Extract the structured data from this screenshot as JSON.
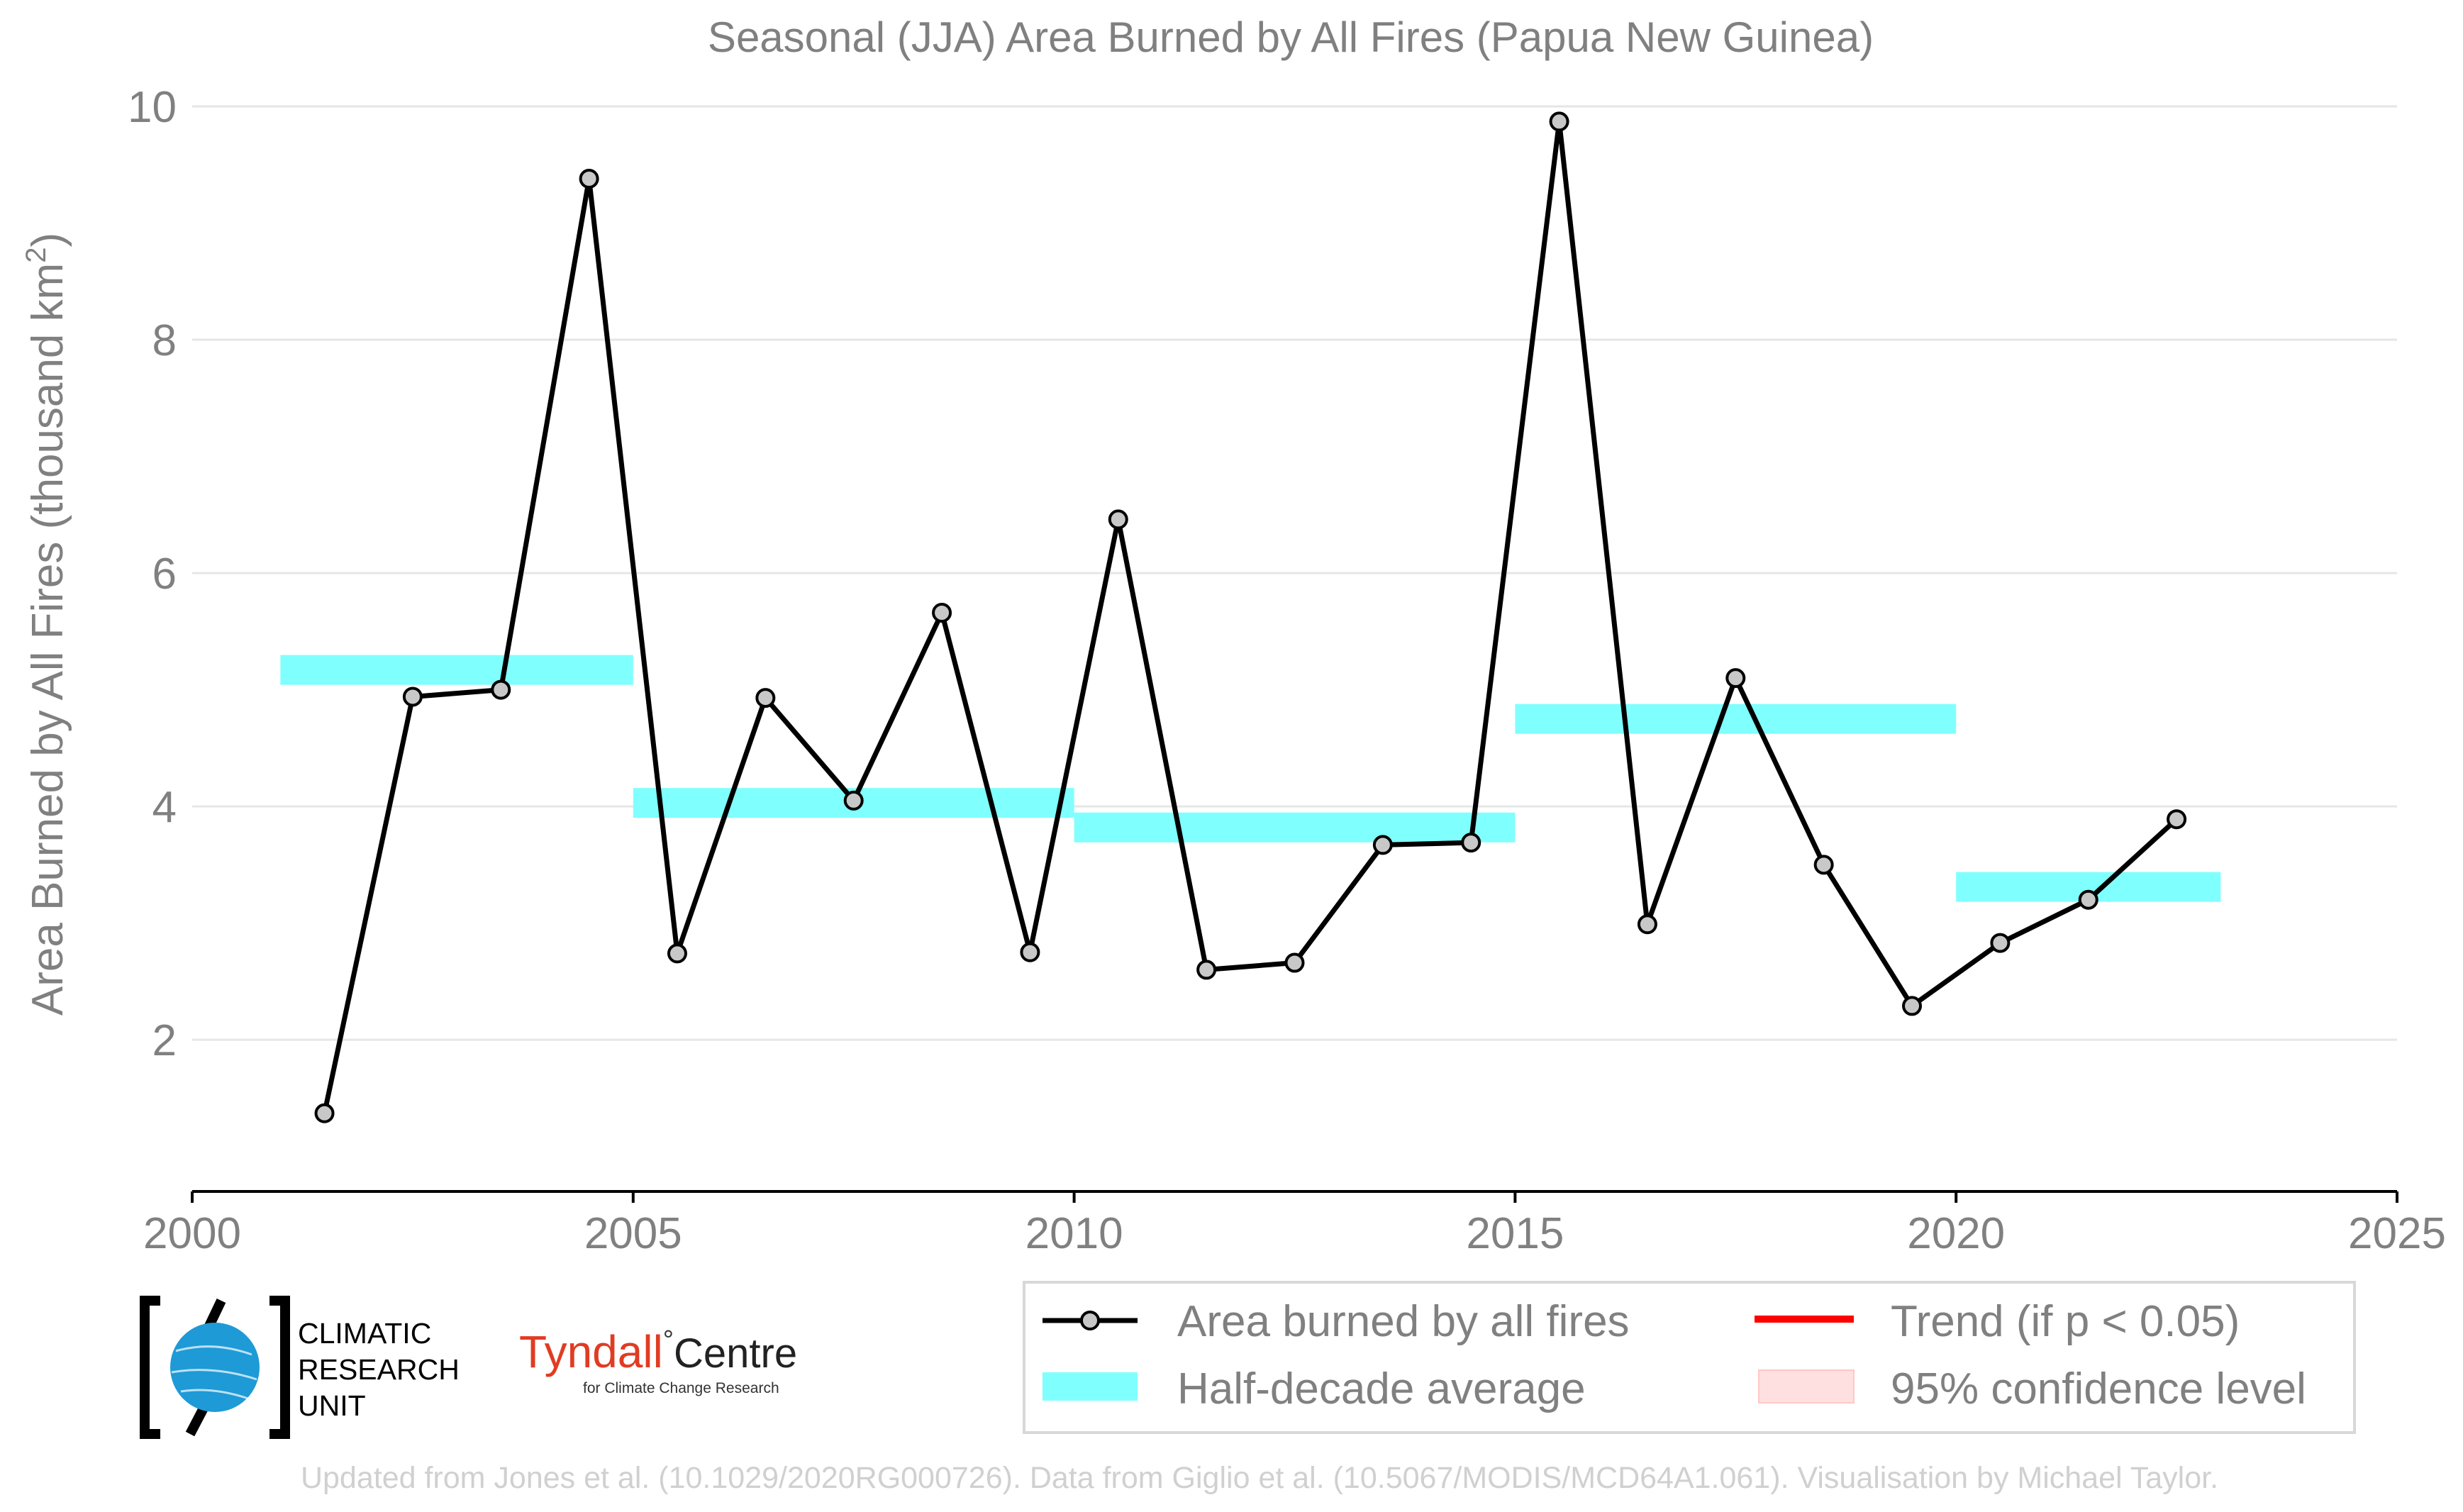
{
  "chart_data": {
    "type": "line",
    "title": "Seasonal (JJA) Area Burned by All Fires (Papua New Guinea)",
    "ylabel_main": "Area Burned by All Fires (thousand km",
    "ylabel_sup": "2",
    "ylabel_close": ")",
    "xlim": [
      2000,
      2025
    ],
    "ylim": [
      0.7,
      10.0
    ],
    "xticks": [
      2000,
      2005,
      2010,
      2015,
      2020,
      2025
    ],
    "yticks": [
      2,
      4,
      6,
      8,
      10
    ],
    "grid": "horizontal",
    "series": [
      {
        "name": "Area burned by all fires",
        "x": [
          2001.5,
          2002.5,
          2003.5,
          2004.5,
          2005.5,
          2006.5,
          2007.5,
          2008.5,
          2009.5,
          2010.5,
          2011.5,
          2012.5,
          2013.5,
          2014.5,
          2015.5,
          2016.5,
          2017.5,
          2018.5,
          2019.5,
          2020.5,
          2021.5,
          2022.5
        ],
        "y": [
          1.37,
          4.94,
          5.0,
          9.38,
          2.74,
          4.93,
          4.05,
          5.66,
          2.75,
          6.46,
          2.6,
          2.66,
          3.67,
          3.69,
          9.87,
          2.99,
          5.1,
          3.5,
          2.29,
          2.83,
          3.2,
          3.89
        ]
      },
      {
        "name": "Half-decade average",
        "segments": [
          {
            "x0": 2001,
            "x1": 2005,
            "y": 5.17
          },
          {
            "x0": 2005,
            "x1": 2010,
            "y": 4.03
          },
          {
            "x0": 2010,
            "x1": 2015,
            "y": 3.82
          },
          {
            "x0": 2015,
            "x1": 2020,
            "y": 4.75
          },
          {
            "x0": 2020,
            "x1": 2023,
            "y": 3.31
          }
        ]
      }
    ],
    "legend": {
      "position": "bottom-right",
      "items": [
        {
          "label": "Area burned by all fires",
          "kind": "line-marker",
          "color": "#000000"
        },
        {
          "label": "Trend (if p < 0.05)",
          "kind": "line",
          "color": "#ff0000"
        },
        {
          "label": "Half-decade average",
          "kind": "band",
          "color": "#80ffff"
        },
        {
          "label": "95% confidence level",
          "kind": "band",
          "color": "#ffe0e0"
        }
      ]
    },
    "colors": {
      "line": "#000000",
      "marker_fill": "#c8c8c8",
      "band": "#80ffff",
      "grid": "#e6e6e6",
      "text": "#808080"
    }
  },
  "logos": {
    "cru_lines": [
      "CLIMATIC",
      "RESEARCH",
      "UNIT"
    ],
    "tyndall_main": "Tyndall",
    "tyndall_degree": "°",
    "tyndall_centre": "Centre",
    "tyndall_sub": "for Climate Change Research"
  },
  "footer": "Updated from Jones et al. (10.1029/2020RG000726). Data from Giglio et al. (10.5067/MODIS/MCD64A1.061). Visualisation by Michael Taylor."
}
